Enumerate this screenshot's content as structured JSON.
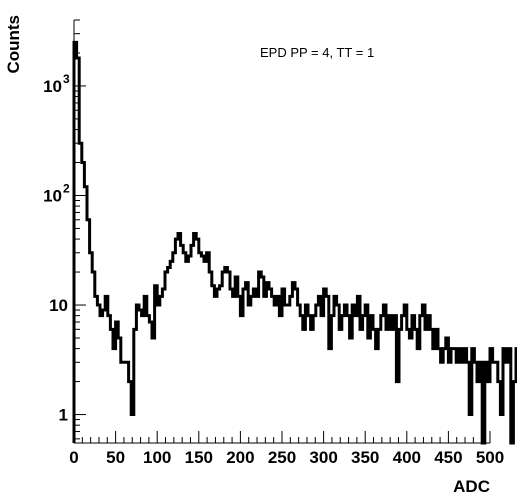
{
  "chart_data": {
    "type": "histogram",
    "xlabel": "ADC",
    "ylabel": "Counts",
    "annotation": "EPD PP = 4, TT = 1",
    "xlim": [
      0,
      500
    ],
    "ylim": [
      0.55,
      4000
    ],
    "yscale": "log",
    "grid": false,
    "bin_width": 3.125,
    "x_ticks": [
      0,
      50,
      100,
      150,
      200,
      250,
      300,
      350,
      400,
      450,
      500
    ],
    "y_ticks": [
      {
        "value": 1,
        "label": "1"
      },
      {
        "value": 10,
        "label": "10"
      },
      {
        "value": 100,
        "label": "10",
        "exp": "2"
      },
      {
        "value": 1000,
        "label": "10",
        "exp": "3"
      }
    ],
    "values": [
      2500,
      1800,
      300,
      200,
      120,
      60,
      30,
      20,
      12,
      10,
      8,
      9,
      12,
      8,
      6,
      4,
      7,
      5,
      3,
      3,
      3,
      2,
      1,
      6,
      10,
      9,
      8,
      12,
      8,
      7,
      5,
      15,
      10,
      12,
      14,
      20,
      22,
      25,
      30,
      40,
      45,
      35,
      30,
      25,
      28,
      35,
      45,
      40,
      30,
      28,
      25,
      30,
      20,
      15,
      12,
      14,
      15,
      20,
      22,
      20,
      14,
      12,
      18,
      12,
      8,
      14,
      16,
      10,
      12,
      14,
      12,
      20,
      18,
      12,
      16,
      14,
      12,
      10,
      12,
      8,
      14,
      10,
      10,
      12,
      16,
      14,
      10,
      8,
      6,
      10,
      8,
      6,
      8,
      10,
      12,
      8,
      14,
      12,
      4,
      8,
      12,
      10,
      6,
      8,
      10,
      8,
      5,
      10,
      8,
      12,
      6,
      8,
      10,
      5,
      8,
      6,
      4,
      6,
      8,
      10,
      6,
      8,
      6,
      8,
      2,
      6,
      8,
      10,
      6,
      5,
      8,
      6,
      4,
      8,
      10,
      6,
      8,
      6,
      4,
      6,
      4,
      3,
      4,
      5,
      3,
      4,
      4,
      3,
      4,
      3,
      4,
      3,
      1,
      4,
      3,
      2,
      3,
      0.5,
      3,
      2,
      4,
      3,
      3,
      2,
      1,
      4,
      3,
      4,
      0.5,
      2,
      4,
      3,
      4,
      2,
      1,
      0.5,
      3,
      4,
      3,
      3,
      2,
      3,
      1,
      2,
      4,
      3,
      5,
      4,
      2,
      3,
      0.5,
      1,
      3,
      4,
      0.5,
      4,
      3,
      2,
      1,
      4,
      3,
      2,
      3,
      4,
      3,
      4,
      1,
      2,
      1,
      3,
      0.5
    ]
  }
}
